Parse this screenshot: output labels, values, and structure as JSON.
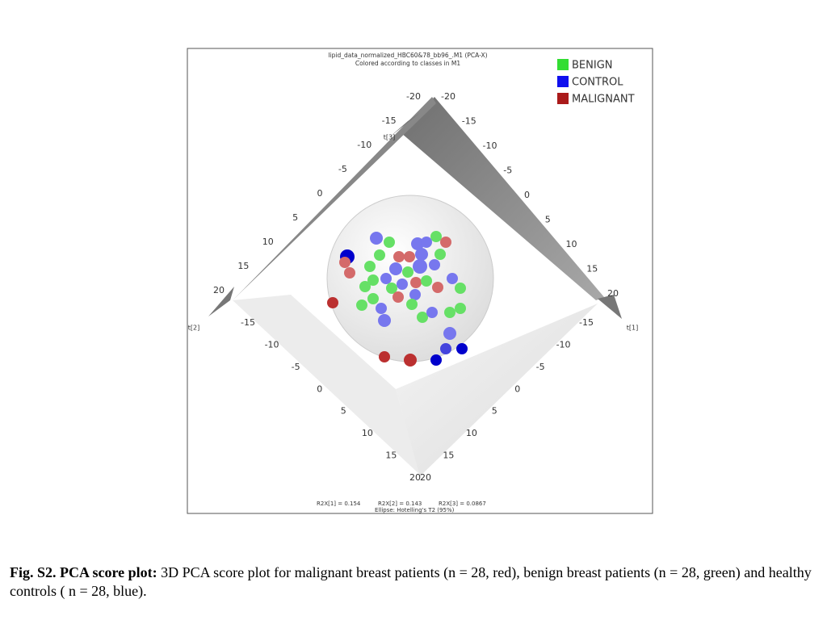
{
  "figure": {
    "title": "lipid_data_normalized_HBC60&78_bb96_.M1 (PCA-X)",
    "subtitle": "Colored according to classes in M1",
    "legend": [
      "BENIGN",
      "CONTROL",
      "MALIGNANT"
    ],
    "axis_titles": {
      "t1": "t[1]",
      "t2": "t[2]",
      "t3": "t[3]"
    },
    "ticks_upper_left": [
      -20,
      -15,
      -10,
      -5,
      0,
      5,
      10,
      15,
      20
    ],
    "ticks_upper_right": [
      -20,
      -15,
      -10,
      -5,
      0,
      5,
      10,
      15,
      20
    ],
    "ticks_lower_left": [
      -15,
      -10,
      -5,
      0,
      5,
      10,
      15,
      20
    ],
    "ticks_lower_right": [
      -15,
      -10,
      -5,
      0,
      5,
      10,
      15,
      20
    ],
    "footer": [
      "R2X[1] = 0.154",
      "R2X[2] = 0.143",
      "R2X[3] = 0.0867",
      "Ellipse: Hotelling's T2 (95%)"
    ]
  },
  "caption": {
    "label": "Fig. S2. PCA score plot:",
    "text": " 3D PCA score plot for malignant breast patients (n = 28, red), benign breast patients (n = 28, green) and healthy controls ( n = 28, blue)."
  }
}
